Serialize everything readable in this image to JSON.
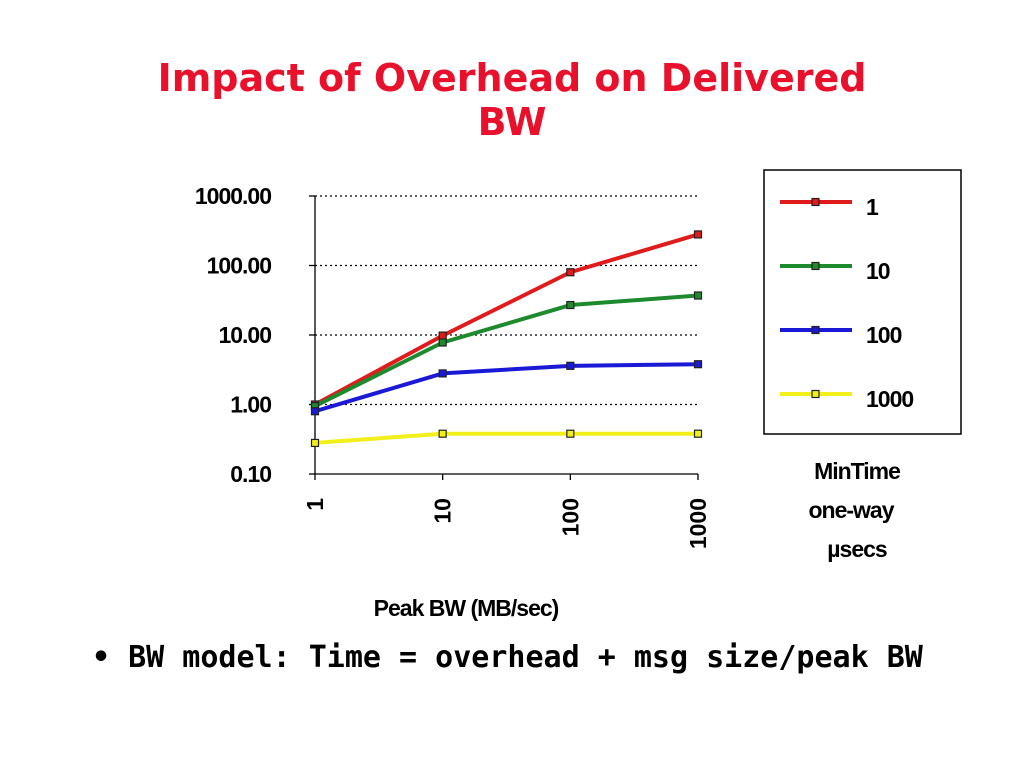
{
  "slide": {
    "title_line1": "Impact of Overhead on Delivered",
    "title_line2": "BW",
    "bullet_marker": "•",
    "bullet_text": "BW model: Time = overhead + msg size/peak BW"
  },
  "chart_data": {
    "type": "line",
    "title": "Impact of Overhead on Delivered BW",
    "xlabel": "Peak BW (MB/sec)",
    "ylabel": "",
    "x_scale": "log",
    "y_scale": "log",
    "x": [
      1,
      10,
      100,
      1000
    ],
    "x_tick_labels": [
      "1",
      "10",
      "100",
      "1000"
    ],
    "ylim": [
      0.1,
      1000
    ],
    "y_tick_values": [
      0.1,
      1,
      10,
      100,
      1000
    ],
    "y_tick_labels": [
      "0.10",
      "1.00",
      "10.00",
      "100.00",
      "1000.00"
    ],
    "grid": "horizontal-dotted",
    "legend_placement": "right",
    "legend_caption": [
      "MinTime",
      "one-way",
      "µsecs"
    ],
    "series": [
      {
        "name": "1",
        "color": "#e01b1b",
        "values": [
          1.0,
          9.8,
          80,
          280
        ]
      },
      {
        "name": "10",
        "color": "#1e8a2e",
        "values": [
          0.95,
          7.8,
          27,
          37
        ]
      },
      {
        "name": "100",
        "color": "#1a1ad6",
        "values": [
          0.8,
          2.8,
          3.6,
          3.8
        ]
      },
      {
        "name": "1000",
        "color": "#f2ef1a",
        "values": [
          0.28,
          0.38,
          0.38,
          0.38
        ]
      }
    ]
  }
}
